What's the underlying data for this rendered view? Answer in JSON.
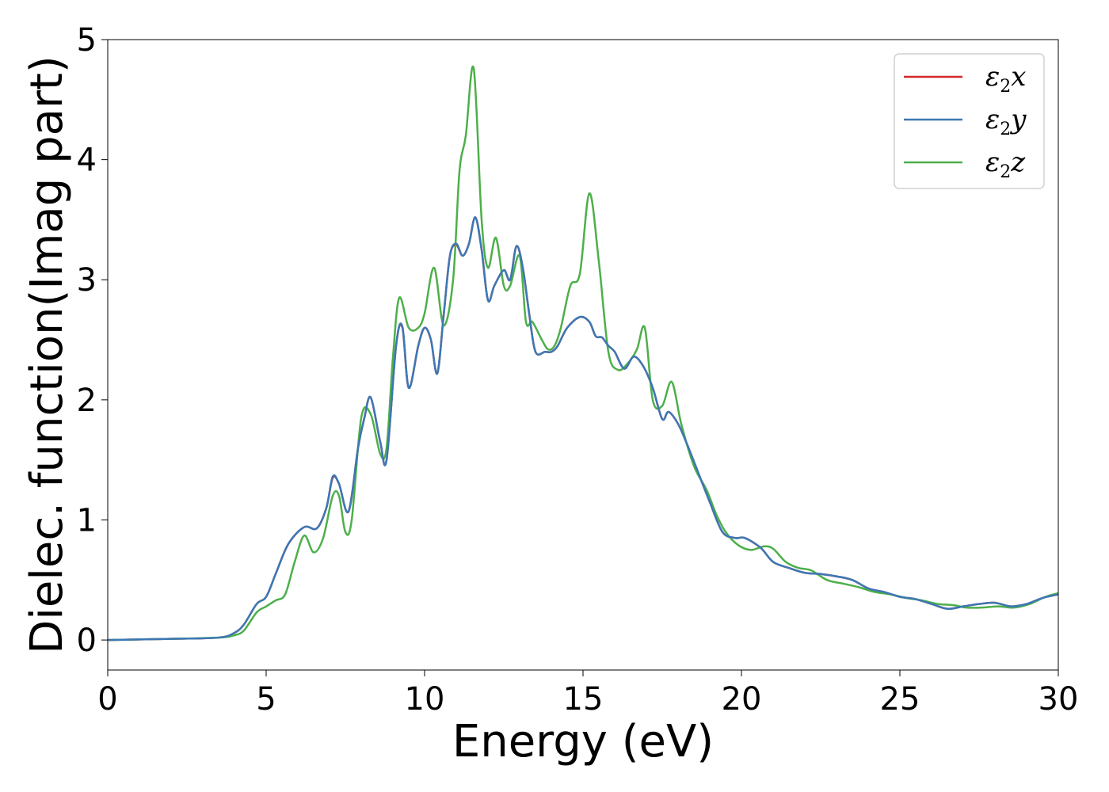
{
  "chart_data": {
    "type": "line",
    "xlabel": "Energy (eV)",
    "ylabel": "Dielec. function(Imag part)",
    "xlim": [
      0,
      30
    ],
    "ylim": [
      -0.25,
      5
    ],
    "xticks": [
      "0",
      "5",
      "10",
      "15",
      "20",
      "25",
      "30"
    ],
    "xtick_values": [
      0,
      5,
      10,
      15,
      20,
      25,
      30
    ],
    "yticks": [
      "0",
      "1",
      "2",
      "3",
      "4",
      "5"
    ],
    "ytick_values": [
      0,
      1,
      2,
      3,
      4,
      5
    ],
    "grid": false,
    "legend_position": "top-right",
    "series": [
      {
        "name": "ε2x",
        "legend_base": "ε",
        "legend_sub": "2",
        "legend_suffix": "x",
        "color": "#d62728",
        "x": [
          0,
          2,
          3.5,
          4.0,
          4.3,
          4.7,
          5.0,
          5.3,
          5.7,
          6.2,
          6.6,
          6.9,
          7.1,
          7.3,
          7.6,
          7.9,
          8.1,
          8.3,
          8.6,
          8.8,
          9.1,
          9.3,
          9.5,
          9.8,
          10.0,
          10.2,
          10.4,
          10.6,
          10.8,
          11.0,
          11.2,
          11.4,
          11.6,
          11.8,
          12.0,
          12.2,
          12.5,
          12.7,
          12.9,
          13.1,
          13.3,
          13.5,
          13.8,
          14.0,
          14.2,
          14.5,
          14.9,
          15.2,
          15.4,
          15.6,
          15.8,
          16.0,
          16.3,
          16.6,
          16.9,
          17.2,
          17.5,
          17.7,
          18.0,
          18.3,
          18.7,
          19.0,
          19.4,
          19.8,
          20.1,
          20.6,
          21.0,
          21.5,
          22.0,
          22.5,
          23.0,
          23.5,
          24.0,
          24.5,
          25.0,
          25.5,
          26.0,
          26.5,
          27.0,
          27.5,
          28.0,
          28.5,
          29.0,
          29.5,
          30.0
        ],
        "y": [
          0,
          0.01,
          0.02,
          0.06,
          0.13,
          0.3,
          0.36,
          0.55,
          0.8,
          0.94,
          0.93,
          1.1,
          1.35,
          1.3,
          1.07,
          1.6,
          1.85,
          2.02,
          1.65,
          1.5,
          2.45,
          2.6,
          2.1,
          2.45,
          2.6,
          2.5,
          2.22,
          2.7,
          3.2,
          3.29,
          3.2,
          3.3,
          3.52,
          3.25,
          2.83,
          2.95,
          3.08,
          3.0,
          3.28,
          3.1,
          2.72,
          2.4,
          2.4,
          2.4,
          2.45,
          2.6,
          2.69,
          2.65,
          2.53,
          2.52,
          2.45,
          2.4,
          2.26,
          2.36,
          2.28,
          2.1,
          1.84,
          1.9,
          1.8,
          1.62,
          1.35,
          1.15,
          0.9,
          0.85,
          0.85,
          0.77,
          0.65,
          0.6,
          0.56,
          0.55,
          0.53,
          0.5,
          0.43,
          0.4,
          0.36,
          0.34,
          0.3,
          0.26,
          0.28,
          0.3,
          0.31,
          0.28,
          0.3,
          0.35,
          0.38
        ]
      },
      {
        "name": "ε2y",
        "legend_base": "ε",
        "legend_sub": "2",
        "legend_suffix": "y",
        "color": "#3b78b5",
        "x": [
          0,
          2,
          3.5,
          4.0,
          4.3,
          4.7,
          5.0,
          5.3,
          5.7,
          6.2,
          6.6,
          6.9,
          7.1,
          7.3,
          7.6,
          7.9,
          8.1,
          8.3,
          8.6,
          8.8,
          9.1,
          9.3,
          9.5,
          9.8,
          10.0,
          10.2,
          10.4,
          10.6,
          10.8,
          11.0,
          11.2,
          11.4,
          11.6,
          11.8,
          12.0,
          12.2,
          12.5,
          12.7,
          12.9,
          13.1,
          13.3,
          13.5,
          13.8,
          14.0,
          14.2,
          14.5,
          14.9,
          15.2,
          15.4,
          15.6,
          15.8,
          16.0,
          16.3,
          16.6,
          16.9,
          17.2,
          17.5,
          17.7,
          18.0,
          18.3,
          18.7,
          19.0,
          19.4,
          19.8,
          20.1,
          20.6,
          21.0,
          21.5,
          22.0,
          22.5,
          23.0,
          23.5,
          24.0,
          24.5,
          25.0,
          25.5,
          26.0,
          26.5,
          27.0,
          27.5,
          28.0,
          28.5,
          29.0,
          29.5,
          30.0
        ],
        "y": [
          0,
          0.01,
          0.02,
          0.06,
          0.13,
          0.3,
          0.36,
          0.55,
          0.8,
          0.94,
          0.93,
          1.1,
          1.36,
          1.3,
          1.07,
          1.6,
          1.85,
          2.02,
          1.65,
          1.5,
          2.45,
          2.61,
          2.1,
          2.45,
          2.6,
          2.5,
          2.22,
          2.7,
          3.2,
          3.3,
          3.2,
          3.3,
          3.52,
          3.25,
          2.83,
          2.95,
          3.08,
          3.0,
          3.28,
          3.1,
          2.72,
          2.4,
          2.4,
          2.4,
          2.45,
          2.6,
          2.69,
          2.65,
          2.53,
          2.52,
          2.45,
          2.4,
          2.26,
          2.36,
          2.28,
          2.1,
          1.84,
          1.9,
          1.8,
          1.62,
          1.35,
          1.15,
          0.9,
          0.85,
          0.85,
          0.77,
          0.65,
          0.6,
          0.56,
          0.55,
          0.53,
          0.5,
          0.43,
          0.4,
          0.36,
          0.34,
          0.3,
          0.26,
          0.28,
          0.3,
          0.31,
          0.28,
          0.3,
          0.35,
          0.38
        ]
      },
      {
        "name": "ε2z",
        "legend_base": "ε",
        "legend_sub": "2",
        "legend_suffix": "z",
        "color": "#4daf4a",
        "x": [
          0,
          2,
          3.5,
          4.0,
          4.3,
          4.7,
          5.0,
          5.3,
          5.6,
          5.9,
          6.2,
          6.5,
          6.8,
          7.1,
          7.3,
          7.5,
          7.7,
          8.0,
          8.3,
          8.6,
          8.8,
          9.0,
          9.2,
          9.5,
          9.8,
          10.0,
          10.3,
          10.6,
          10.9,
          11.1,
          11.3,
          11.55,
          11.8,
          12.0,
          12.25,
          12.5,
          12.7,
          13.0,
          13.2,
          13.4,
          13.7,
          13.9,
          14.1,
          14.3,
          14.6,
          14.9,
          15.2,
          15.5,
          15.8,
          16.1,
          16.4,
          16.7,
          16.95,
          17.2,
          17.5,
          17.8,
          18.1,
          18.5,
          18.9,
          19.2,
          19.5,
          19.9,
          20.3,
          20.7,
          21.0,
          21.4,
          21.8,
          22.2,
          22.7,
          23.2,
          23.7,
          24.2,
          24.7,
          25.2,
          25.7,
          26.2,
          26.7,
          27.1,
          27.6,
          28.1,
          28.6,
          29.1,
          29.6,
          30.0
        ],
        "y": [
          0,
          0.01,
          0.02,
          0.04,
          0.08,
          0.23,
          0.28,
          0.33,
          0.38,
          0.65,
          0.87,
          0.73,
          0.85,
          1.2,
          1.2,
          0.9,
          1.0,
          1.85,
          1.88,
          1.55,
          1.6,
          2.35,
          2.85,
          2.6,
          2.6,
          2.72,
          3.1,
          2.62,
          3.0,
          3.9,
          4.2,
          4.76,
          3.5,
          3.1,
          3.35,
          2.95,
          2.95,
          3.2,
          2.65,
          2.65,
          2.5,
          2.42,
          2.45,
          2.6,
          2.95,
          3.05,
          3.72,
          3.15,
          2.4,
          2.25,
          2.3,
          2.42,
          2.6,
          2.0,
          1.95,
          2.15,
          1.8,
          1.45,
          1.25,
          1.05,
          0.9,
          0.79,
          0.75,
          0.78,
          0.76,
          0.65,
          0.6,
          0.58,
          0.5,
          0.47,
          0.44,
          0.4,
          0.38,
          0.35,
          0.33,
          0.3,
          0.29,
          0.27,
          0.27,
          0.28,
          0.27,
          0.3,
          0.36,
          0.39
        ]
      }
    ]
  }
}
